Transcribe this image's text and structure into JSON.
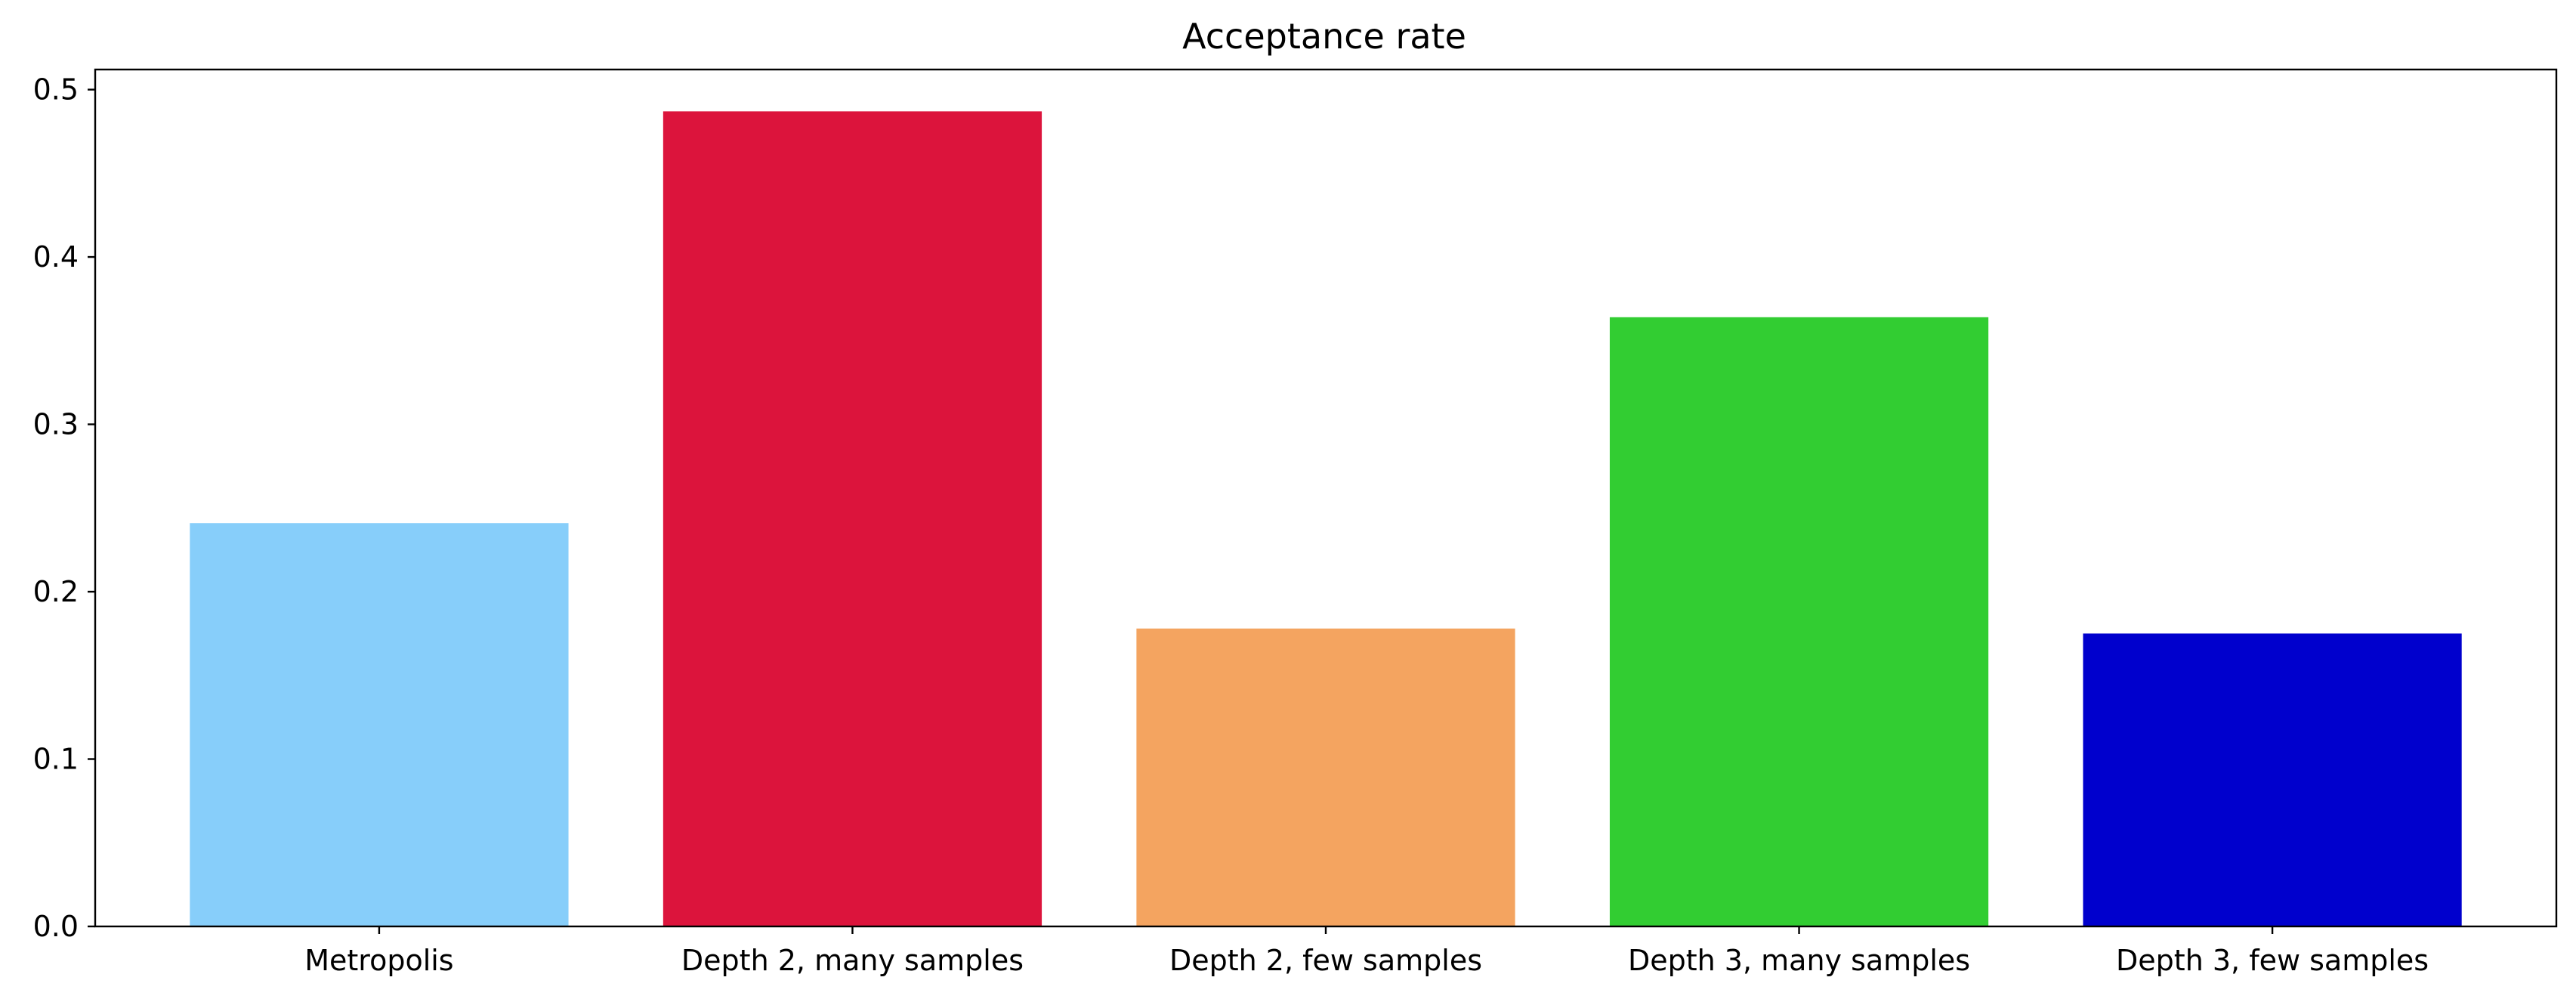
{
  "chart_data": {
    "type": "bar",
    "title": "Acceptance rate",
    "xlabel": "",
    "ylabel": "",
    "categories": [
      "Metropolis",
      "Depth 2, many samples",
      "Depth 2, few samples",
      "Depth 3, many samples",
      "Depth 3, few samples"
    ],
    "values": [
      0.241,
      0.487,
      0.178,
      0.364,
      0.175
    ],
    "colors": [
      "#87CEFA",
      "#DC143C",
      "#F4A460",
      "#32CD32",
      "#0000CD"
    ],
    "ylim": [
      0,
      0.512
    ],
    "yticks": [
      0.0,
      0.1,
      0.2,
      0.3,
      0.4,
      0.5
    ],
    "ytick_labels": [
      "0.0",
      "0.1",
      "0.2",
      "0.3",
      "0.4",
      "0.5"
    ],
    "grid": false,
    "legend": "none"
  }
}
